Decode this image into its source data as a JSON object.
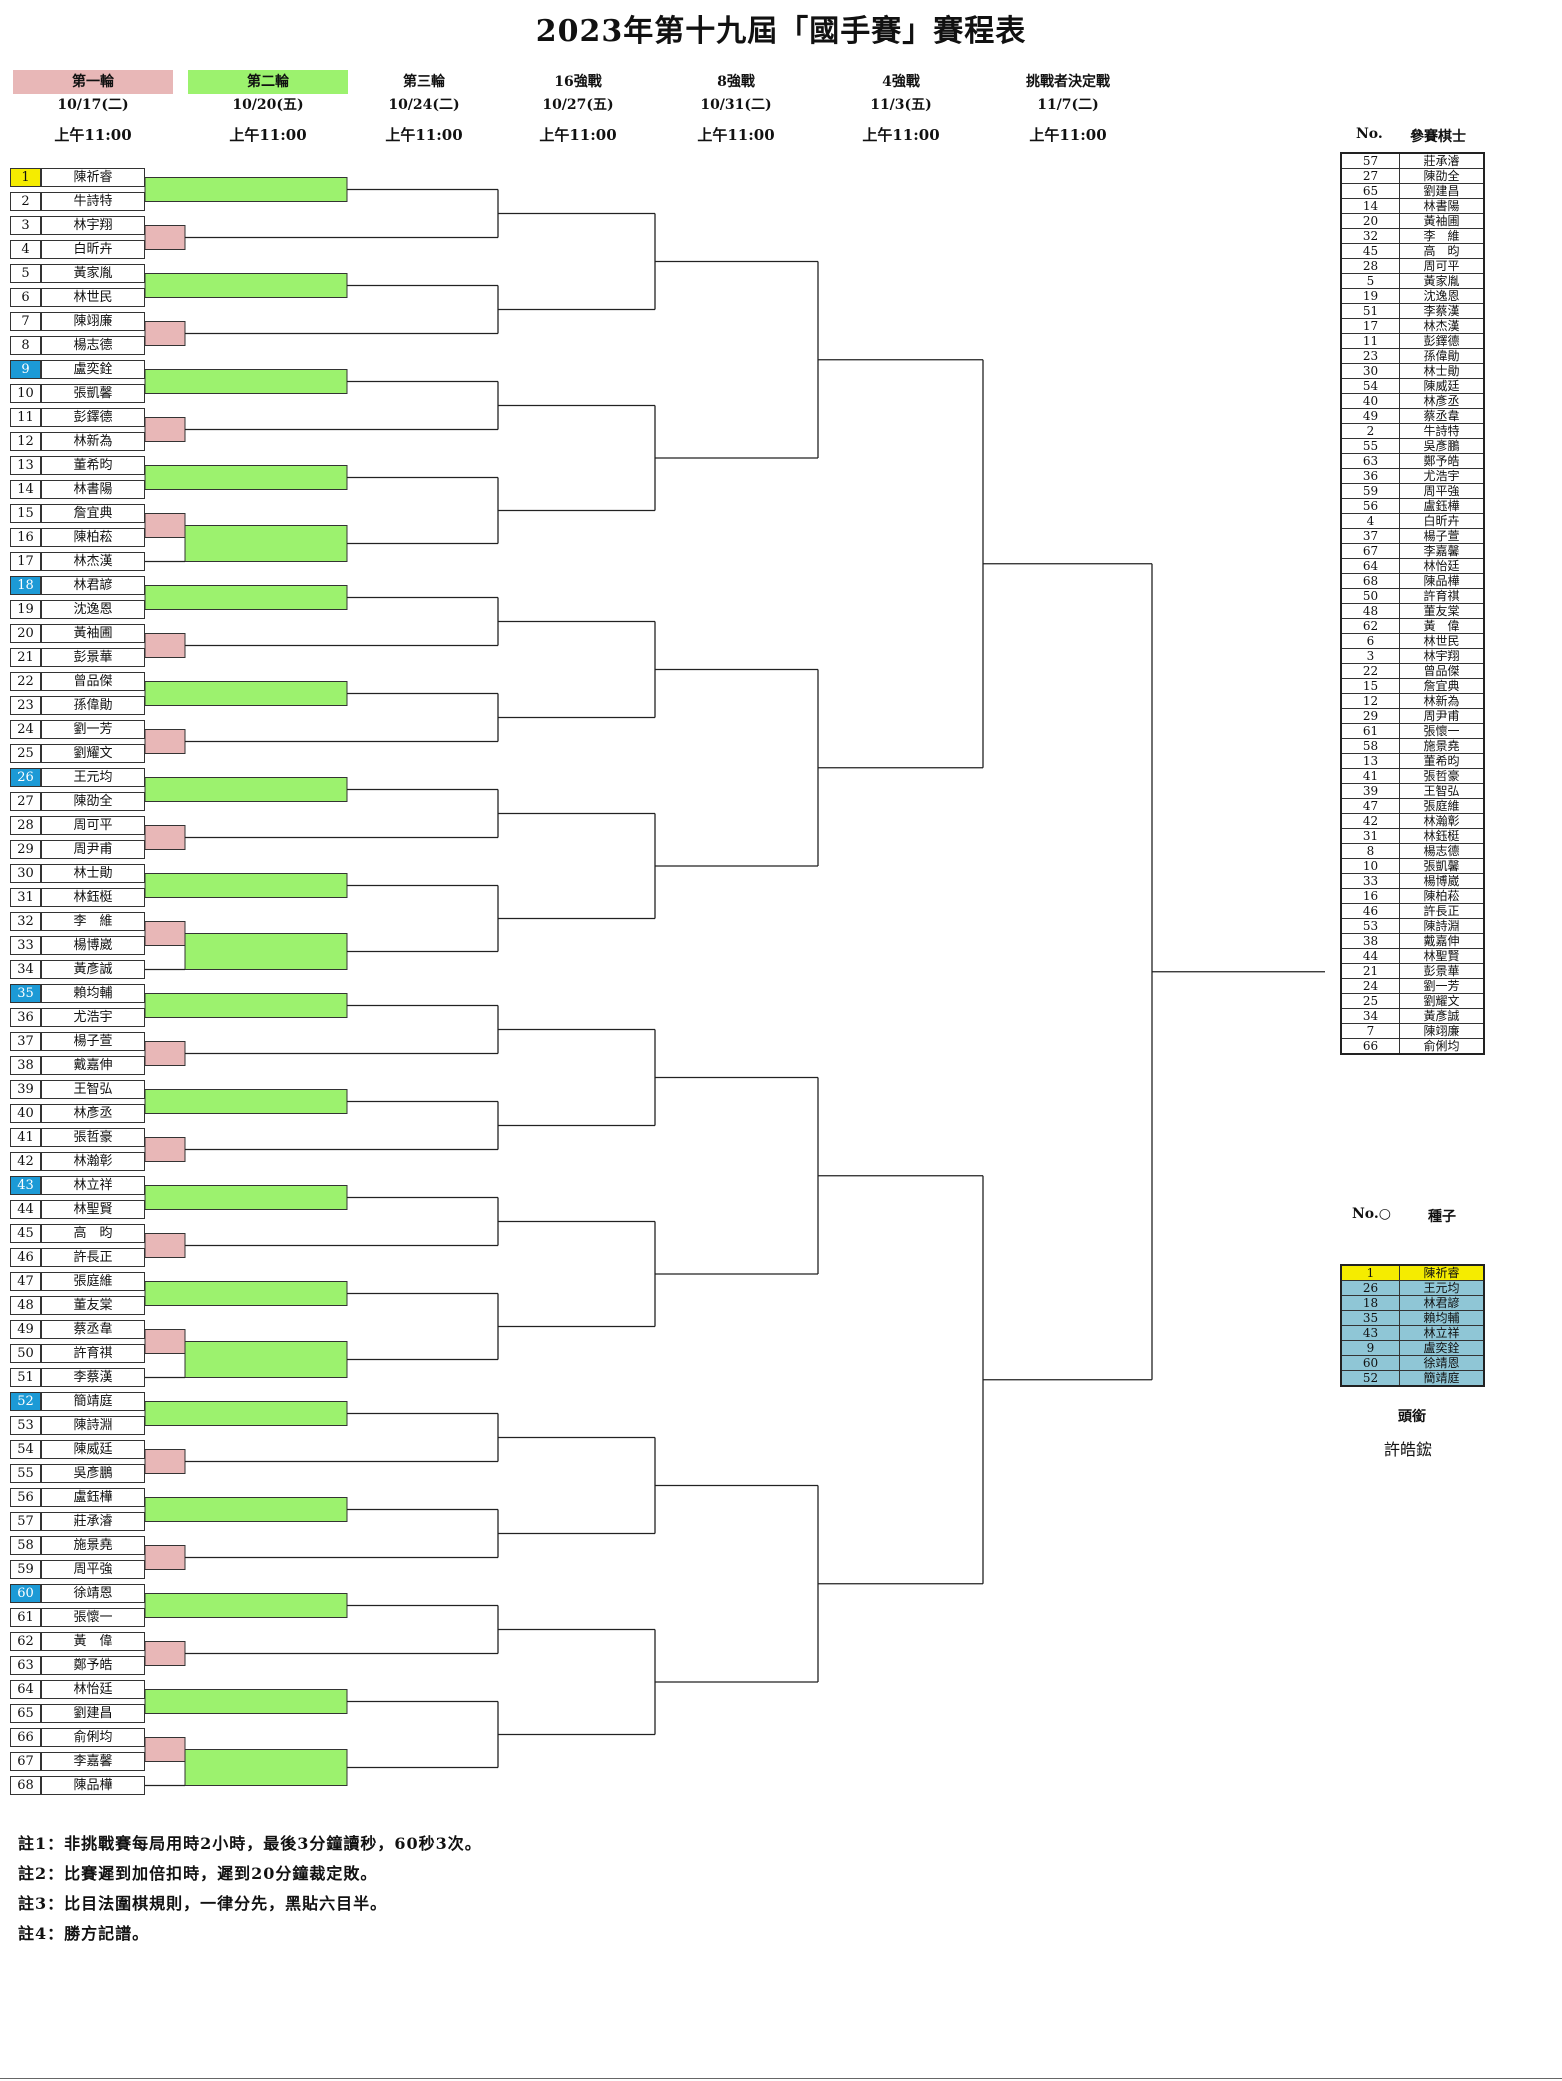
{
  "title": "2023年第十九屆「國手賽」賽程表",
  "rounds": [
    {
      "label": "第一輪",
      "date": "10/17(二)",
      "time": "上午11:00",
      "color": "#e8b7b7"
    },
    {
      "label": "第二輪",
      "date": "10/20(五)",
      "time": "上午11:00",
      "color": "#9cf26e"
    },
    {
      "label": "第三輪",
      "date": "10/24(二)",
      "time": "上午11:00"
    },
    {
      "label": "16強戰",
      "date": "10/27(五)",
      "time": "上午11:00"
    },
    {
      "label": "8強戰",
      "date": "10/31(二)",
      "time": "上午11:00"
    },
    {
      "label": "4強戰",
      "date": "11/3(五)",
      "time": "上午11:00"
    },
    {
      "label": "挑戰者決定戰",
      "date": "11/7(二)",
      "time": "上午11:00"
    }
  ],
  "players": [
    {
      "no": "1",
      "name": "陳祈睿",
      "seed": "yellow"
    },
    {
      "no": "2",
      "name": "牛詩特"
    },
    {
      "no": "3",
      "name": "林宇翔"
    },
    {
      "no": "4",
      "name": "白昕卉"
    },
    {
      "no": "5",
      "name": "黃家胤"
    },
    {
      "no": "6",
      "name": "林世民"
    },
    {
      "no": "7",
      "name": "陳翊廉"
    },
    {
      "no": "8",
      "name": "楊志德"
    },
    {
      "no": "9",
      "name": "盧奕銓",
      "seed": "blue"
    },
    {
      "no": "10",
      "name": "張凱馨"
    },
    {
      "no": "11",
      "name": "彭鐸德"
    },
    {
      "no": "12",
      "name": "林新為"
    },
    {
      "no": "13",
      "name": "董希昀"
    },
    {
      "no": "14",
      "name": "林書陽"
    },
    {
      "no": "15",
      "name": "詹宜典"
    },
    {
      "no": "16",
      "name": "陳柏菘"
    },
    {
      "no": "17",
      "name": "林杰漢"
    },
    {
      "no": "18",
      "name": "林君諺",
      "seed": "blue"
    },
    {
      "no": "19",
      "name": "沈逸恩"
    },
    {
      "no": "20",
      "name": "黃袖圃"
    },
    {
      "no": "21",
      "name": "彭景華"
    },
    {
      "no": "22",
      "name": "曾品傑"
    },
    {
      "no": "23",
      "name": "孫偉勛"
    },
    {
      "no": "24",
      "name": "劉一芳"
    },
    {
      "no": "25",
      "name": "劉耀文"
    },
    {
      "no": "26",
      "name": "王元均",
      "seed": "blue"
    },
    {
      "no": "27",
      "name": "陳劭全"
    },
    {
      "no": "28",
      "name": "周可平"
    },
    {
      "no": "29",
      "name": "周尹甫"
    },
    {
      "no": "30",
      "name": "林士勛"
    },
    {
      "no": "31",
      "name": "林鈺梃"
    },
    {
      "no": "32",
      "name": "李　維"
    },
    {
      "no": "33",
      "name": "楊博崴"
    },
    {
      "no": "34",
      "name": "黃彥誠"
    },
    {
      "no": "35",
      "name": "賴均輔",
      "seed": "blue"
    },
    {
      "no": "36",
      "name": "尤浩宇"
    },
    {
      "no": "37",
      "name": "楊子萱"
    },
    {
      "no": "38",
      "name": "戴嘉伸"
    },
    {
      "no": "39",
      "name": "王智弘"
    },
    {
      "no": "40",
      "name": "林彥丞"
    },
    {
      "no": "41",
      "name": "張哲豪"
    },
    {
      "no": "42",
      "name": "林瀚彰"
    },
    {
      "no": "43",
      "name": "林立祥",
      "seed": "blue"
    },
    {
      "no": "44",
      "name": "林聖賢"
    },
    {
      "no": "45",
      "name": "高　昀"
    },
    {
      "no": "46",
      "name": "許長正"
    },
    {
      "no": "47",
      "name": "張庭維"
    },
    {
      "no": "48",
      "name": "董友棠"
    },
    {
      "no": "49",
      "name": "蔡丞韋"
    },
    {
      "no": "50",
      "name": "許育祺"
    },
    {
      "no": "51",
      "name": "李蔡漢"
    },
    {
      "no": "52",
      "name": "簡靖庭",
      "seed": "blue"
    },
    {
      "no": "53",
      "name": "陳詩淵"
    },
    {
      "no": "54",
      "name": "陳威廷"
    },
    {
      "no": "55",
      "name": "吳彥鵬"
    },
    {
      "no": "56",
      "name": "盧鈺樺"
    },
    {
      "no": "57",
      "name": "莊承濬"
    },
    {
      "no": "58",
      "name": "施景堯"
    },
    {
      "no": "59",
      "name": "周平強"
    },
    {
      "no": "60",
      "name": "徐靖恩",
      "seed": "blue"
    },
    {
      "no": "61",
      "name": "張懷一"
    },
    {
      "no": "62",
      "name": "黃　偉"
    },
    {
      "no": "63",
      "name": "鄭予皓"
    },
    {
      "no": "64",
      "name": "林怡廷"
    },
    {
      "no": "65",
      "name": "劉建昌"
    },
    {
      "no": "66",
      "name": "俞俐均"
    },
    {
      "no": "67",
      "name": "李嘉馨"
    },
    {
      "no": "68",
      "name": "陳品樺"
    }
  ],
  "entry_list": {
    "no_header": "No.",
    "name_header": "參賽棋士",
    "rows": [
      [
        "57",
        "莊承濬"
      ],
      [
        "27",
        "陳劭全"
      ],
      [
        "65",
        "劉建昌"
      ],
      [
        "14",
        "林書陽"
      ],
      [
        "20",
        "黃袖圃"
      ],
      [
        "32",
        "李　維"
      ],
      [
        "45",
        "高　昀"
      ],
      [
        "28",
        "周可平"
      ],
      [
        "5",
        "黃家胤"
      ],
      [
        "19",
        "沈逸恩"
      ],
      [
        "51",
        "李蔡漢"
      ],
      [
        "17",
        "林杰漢"
      ],
      [
        "11",
        "彭鐸德"
      ],
      [
        "23",
        "孫偉勛"
      ],
      [
        "30",
        "林士勛"
      ],
      [
        "54",
        "陳威廷"
      ],
      [
        "40",
        "林彥丞"
      ],
      [
        "49",
        "蔡丞韋"
      ],
      [
        "2",
        "牛詩特"
      ],
      [
        "55",
        "吳彥鵬"
      ],
      [
        "63",
        "鄭予皓"
      ],
      [
        "36",
        "尤浩宇"
      ],
      [
        "59",
        "周平強"
      ],
      [
        "56",
        "盧鈺樺"
      ],
      [
        "4",
        "白昕卉"
      ],
      [
        "37",
        "楊子萱"
      ],
      [
        "67",
        "李嘉馨"
      ],
      [
        "64",
        "林怡廷"
      ],
      [
        "68",
        "陳品樺"
      ],
      [
        "50",
        "許育祺"
      ],
      [
        "48",
        "董友棠"
      ],
      [
        "62",
        "黃　偉"
      ],
      [
        "6",
        "林世民"
      ],
      [
        "3",
        "林宇翔"
      ],
      [
        "22",
        "曾品傑"
      ],
      [
        "15",
        "詹宜典"
      ],
      [
        "12",
        "林新為"
      ],
      [
        "29",
        "周尹甫"
      ],
      [
        "61",
        "張懷一"
      ],
      [
        "58",
        "施景堯"
      ],
      [
        "13",
        "董希昀"
      ],
      [
        "41",
        "張哲豪"
      ],
      [
        "39",
        "王智弘"
      ],
      [
        "47",
        "張庭維"
      ],
      [
        "42",
        "林瀚彰"
      ],
      [
        "31",
        "林鈺梃"
      ],
      [
        "8",
        "楊志德"
      ],
      [
        "10",
        "張凱馨"
      ],
      [
        "33",
        "楊博崴"
      ],
      [
        "16",
        "陳柏菘"
      ],
      [
        "46",
        "許長正"
      ],
      [
        "53",
        "陳詩淵"
      ],
      [
        "38",
        "戴嘉伸"
      ],
      [
        "44",
        "林聖賢"
      ],
      [
        "21",
        "彭景華"
      ],
      [
        "24",
        "劉一芳"
      ],
      [
        "25",
        "劉耀文"
      ],
      [
        "34",
        "黃彥誠"
      ],
      [
        "7",
        "陳翊廉"
      ],
      [
        "66",
        "俞俐均"
      ]
    ]
  },
  "seeds": {
    "no_header": "No.○",
    "name_header": "種子",
    "rows": [
      {
        "no": "1",
        "name": "陳祈睿",
        "color": "yellow"
      },
      {
        "no": "26",
        "name": "王元均",
        "color": "blue"
      },
      {
        "no": "18",
        "name": "林君諺",
        "color": "blue"
      },
      {
        "no": "35",
        "name": "賴均輔",
        "color": "blue"
      },
      {
        "no": "43",
        "name": "林立祥",
        "color": "blue"
      },
      {
        "no": "9",
        "name": "盧奕銓",
        "color": "blue"
      },
      {
        "no": "60",
        "name": "徐靖恩",
        "color": "blue"
      },
      {
        "no": "52",
        "name": "簡靖庭",
        "color": "blue"
      }
    ]
  },
  "title_holder": {
    "label": "頭銜",
    "name": "許皓鋐"
  },
  "notes": [
    "註1：非挑戰賽每局用時2小時，最後3分鐘讀秒，60秒3次。",
    "註2：比賽遲到加倍扣時，遲到20分鐘裁定敗。",
    "註3：比目法圍棋規則，一律分先，黑貼六目半。",
    "註4：勝方記譜。"
  ],
  "colors": {
    "round1_box": "#e8b7b7",
    "round2_box": "#9cf26e",
    "seed_yellow": "#f5ec00",
    "seed_blue": "#1c9ad6",
    "seed_table_blue": "#8fc6d6"
  }
}
